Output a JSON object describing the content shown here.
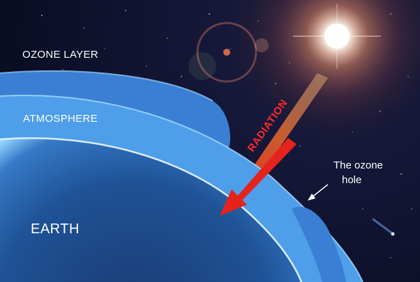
{
  "labels": {
    "ozone_layer": "OZONE LAYER",
    "atmosphere": "ATMOSPHERE",
    "earth": "EARTH",
    "radiation": "RADIATION",
    "ozone_hole_line1": "The ozone",
    "ozone_hole_line2": "hole"
  },
  "colors": {
    "space": "#050a1c",
    "ozone_band": "#3f86d9",
    "atmosphere_band": "#5aa8f0",
    "earth": "#1d4f92",
    "radiation_arrow": "#e4241c",
    "sun_glow": "#ffffff"
  },
  "icons": [
    "sun-icon",
    "radiation-arrow-icon",
    "pointer-arrow-icon",
    "comet-icon"
  ]
}
